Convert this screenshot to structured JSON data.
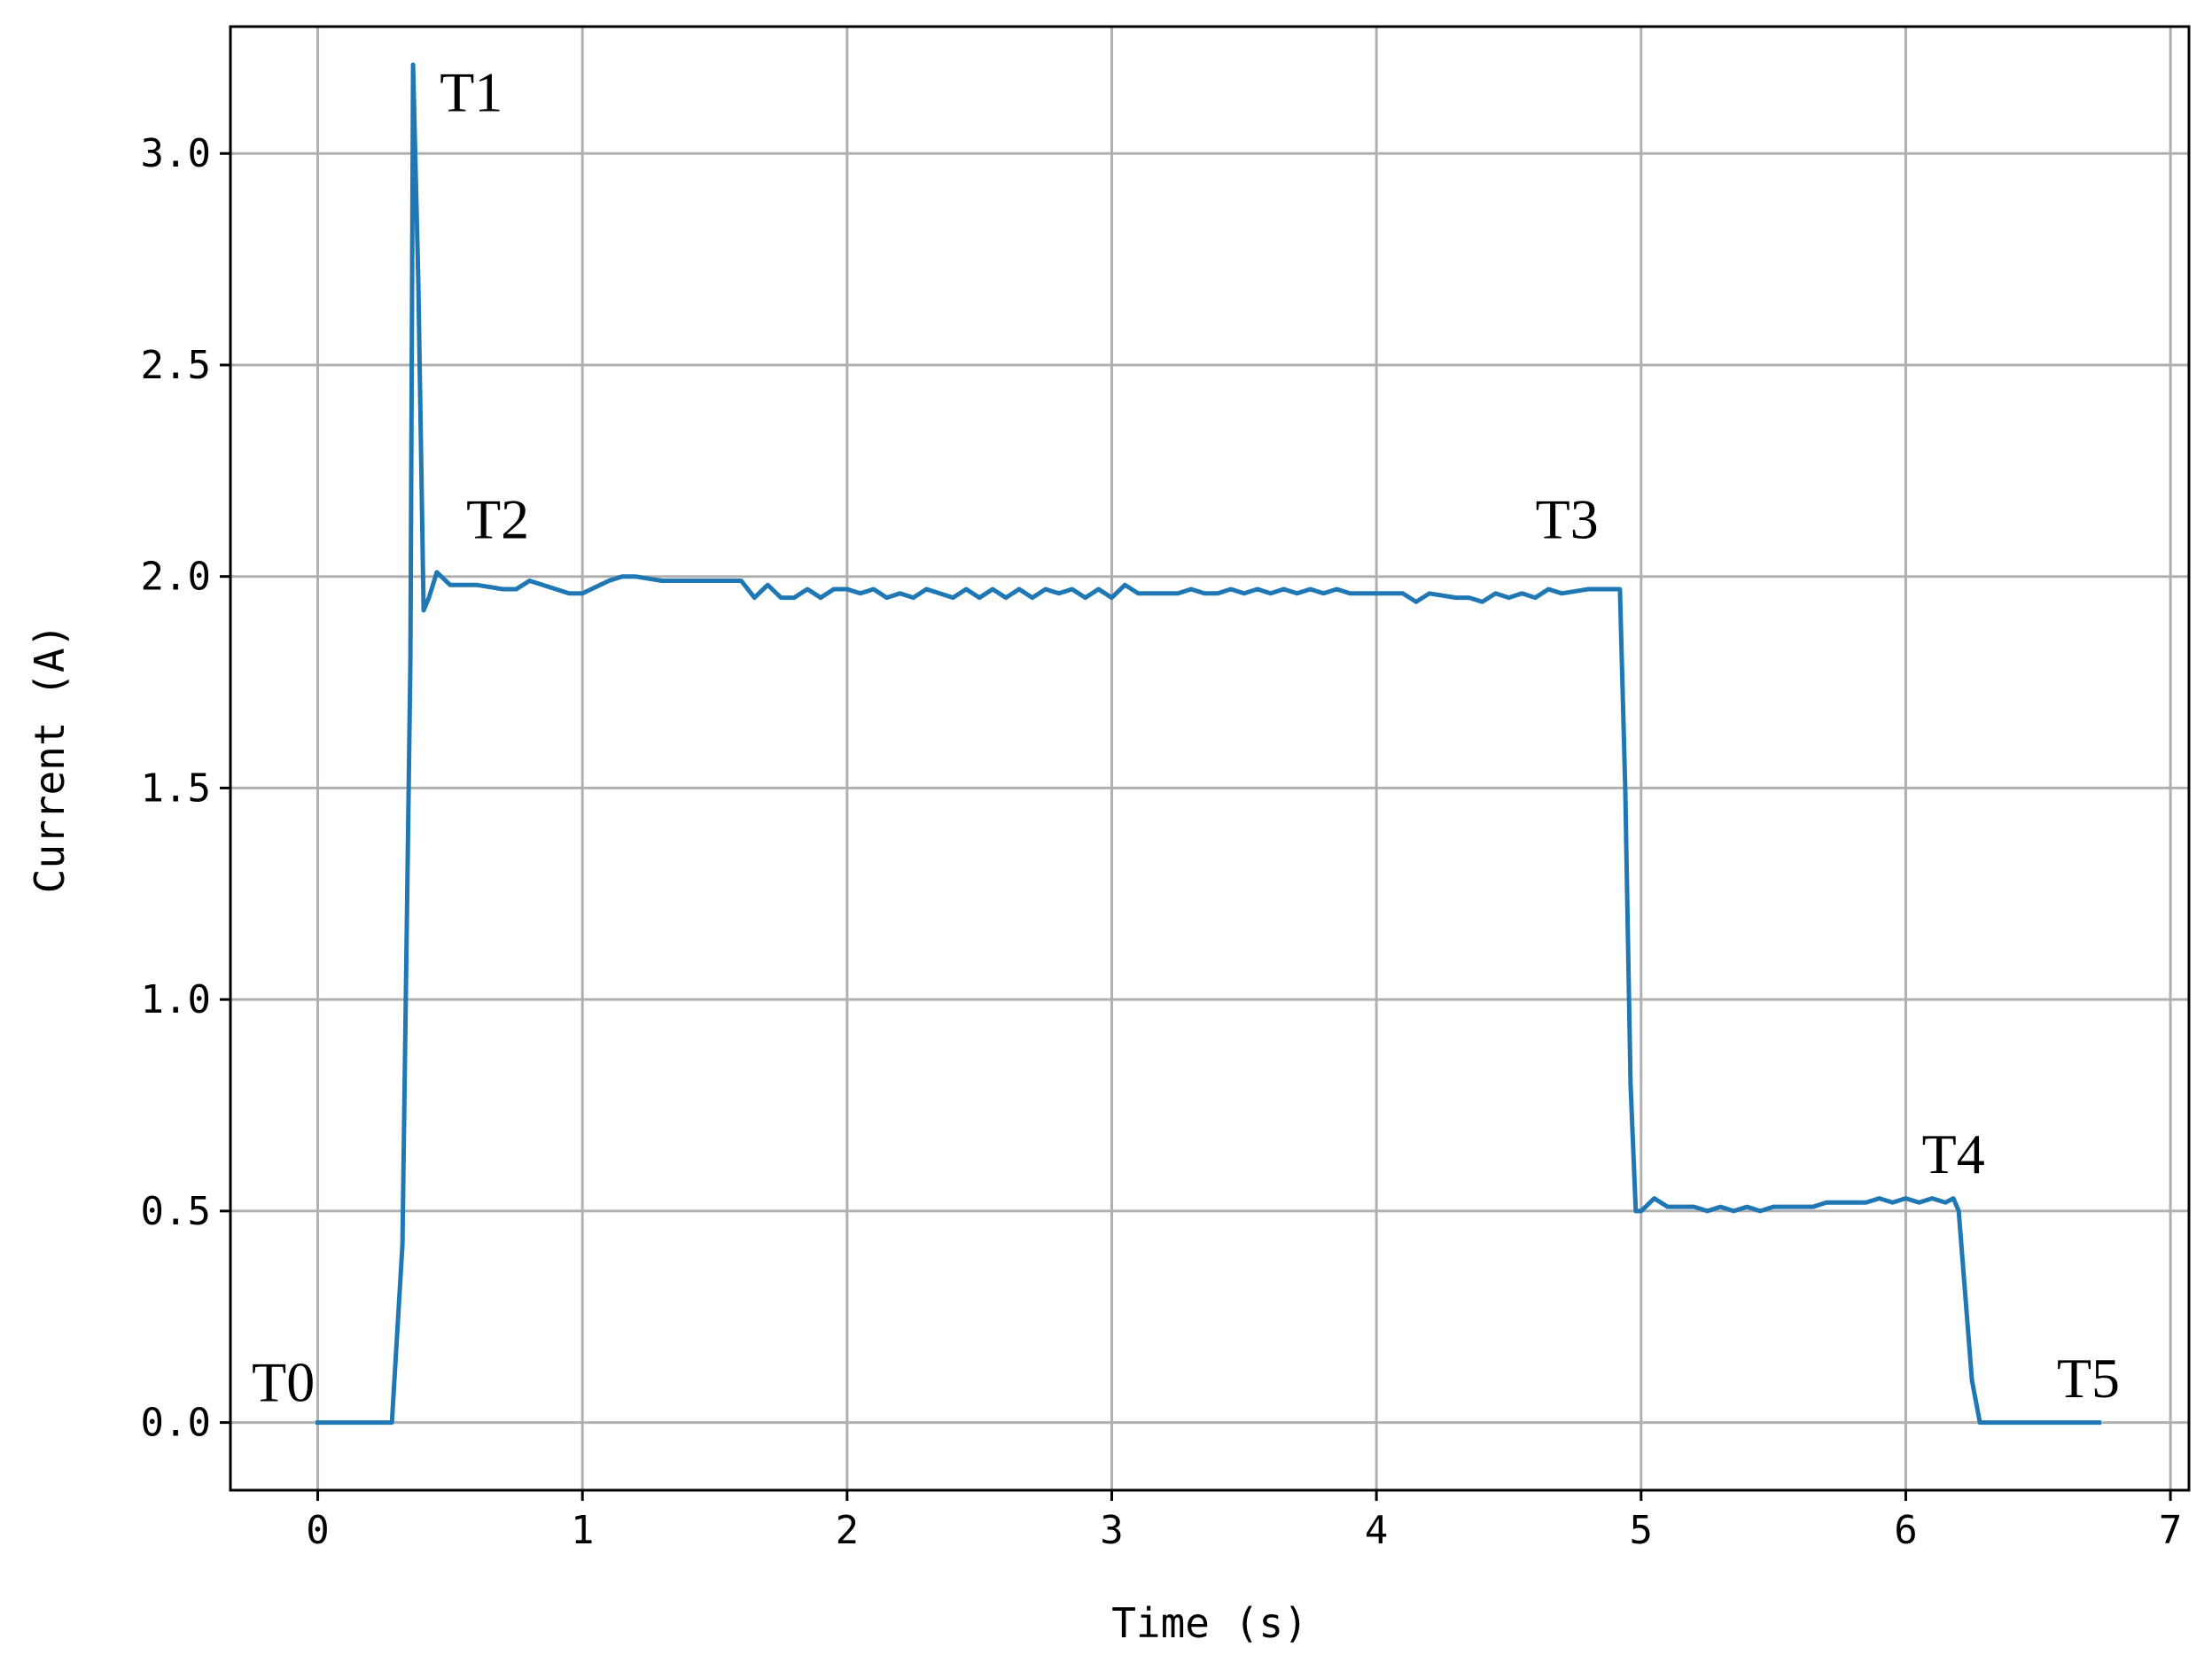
{
  "chart_data": {
    "type": "line",
    "xlabel": "Time (s)",
    "ylabel": "Current (A)",
    "xlim": [
      -0.33,
      7.07
    ],
    "ylim": [
      -0.16,
      3.3
    ],
    "xticks": [
      0,
      1,
      2,
      3,
      4,
      5,
      6,
      7
    ],
    "xtick_labels": [
      "0",
      "1",
      "2",
      "3",
      "4",
      "5",
      "6",
      "7"
    ],
    "yticks": [
      0.0,
      0.5,
      1.0,
      1.5,
      2.0,
      2.5,
      3.0
    ],
    "ytick_labels": [
      "0.0",
      "0.5",
      "1.0",
      "1.5",
      "2.0",
      "2.5",
      "3.0"
    ],
    "grid": true,
    "line_color": "#1f77b4",
    "grid_color": "#b0b0b0",
    "series": [
      {
        "x": [
          0.0,
          0.28,
          0.32,
          0.35,
          0.36,
          0.38,
          0.4,
          0.42,
          0.45,
          0.5,
          0.6,
          0.7,
          0.75,
          0.8,
          0.9,
          0.95,
          1.0,
          1.1,
          1.15,
          1.2,
          1.3,
          1.35,
          1.4,
          1.5,
          1.55,
          1.6,
          1.65,
          1.7,
          1.75,
          1.8,
          1.85,
          1.9,
          1.95,
          2.0,
          2.05,
          2.1,
          2.15,
          2.2,
          2.25,
          2.3,
          2.35,
          2.4,
          2.45,
          2.5,
          2.55,
          2.6,
          2.65,
          2.7,
          2.75,
          2.8,
          2.85,
          2.9,
          2.95,
          3.0,
          3.05,
          3.1,
          3.2,
          3.25,
          3.3,
          3.35,
          3.4,
          3.45,
          3.5,
          3.55,
          3.6,
          3.65,
          3.7,
          3.75,
          3.8,
          3.85,
          3.9,
          4.0,
          4.05,
          4.1,
          4.15,
          4.2,
          4.3,
          4.35,
          4.4,
          4.45,
          4.5,
          4.55,
          4.6,
          4.65,
          4.7,
          4.8,
          4.85,
          4.9,
          4.92,
          4.94,
          4.96,
          4.98,
          5.0,
          5.05,
          5.1,
          5.2,
          5.25,
          5.3,
          5.35,
          5.4,
          5.45,
          5.5,
          5.6,
          5.65,
          5.7,
          5.8,
          5.85,
          5.9,
          5.95,
          6.0,
          6.05,
          6.1,
          6.15,
          6.18,
          6.2,
          6.25,
          6.28,
          6.35,
          6.73
        ],
        "values": [
          0.0,
          0.0,
          0.42,
          1.8,
          3.21,
          2.7,
          1.92,
          1.95,
          2.01,
          1.98,
          1.98,
          1.97,
          1.97,
          1.99,
          1.97,
          1.96,
          1.96,
          1.99,
          2.0,
          2.0,
          1.99,
          1.99,
          1.99,
          1.99,
          1.99,
          1.99,
          1.95,
          1.98,
          1.95,
          1.95,
          1.97,
          1.95,
          1.97,
          1.97,
          1.96,
          1.97,
          1.95,
          1.96,
          1.95,
          1.97,
          1.96,
          1.95,
          1.97,
          1.95,
          1.97,
          1.95,
          1.97,
          1.95,
          1.97,
          1.96,
          1.97,
          1.95,
          1.97,
          1.95,
          1.98,
          1.96,
          1.96,
          1.96,
          1.97,
          1.96,
          1.96,
          1.97,
          1.96,
          1.97,
          1.96,
          1.97,
          1.96,
          1.97,
          1.96,
          1.97,
          1.96,
          1.96,
          1.96,
          1.96,
          1.94,
          1.96,
          1.95,
          1.95,
          1.94,
          1.96,
          1.95,
          1.96,
          1.95,
          1.97,
          1.96,
          1.97,
          1.97,
          1.97,
          1.97,
          1.5,
          0.8,
          0.5,
          0.5,
          0.53,
          0.51,
          0.51,
          0.5,
          0.51,
          0.5,
          0.51,
          0.5,
          0.51,
          0.51,
          0.51,
          0.52,
          0.52,
          0.52,
          0.53,
          0.52,
          0.53,
          0.52,
          0.53,
          0.52,
          0.53,
          0.5,
          0.1,
          0.0,
          0.0,
          0.0
        ]
      }
    ],
    "annotations": [
      {
        "text": "T0",
        "x": -0.13,
        "y": 0.05
      },
      {
        "text": "T1",
        "x": 0.58,
        "y": 3.1
      },
      {
        "text": "T2",
        "x": 0.68,
        "y": 2.09
      },
      {
        "text": "T3",
        "x": 4.72,
        "y": 2.09
      },
      {
        "text": "T4",
        "x": 6.18,
        "y": 0.59
      },
      {
        "text": "T5",
        "x": 6.69,
        "y": 0.06
      }
    ]
  }
}
